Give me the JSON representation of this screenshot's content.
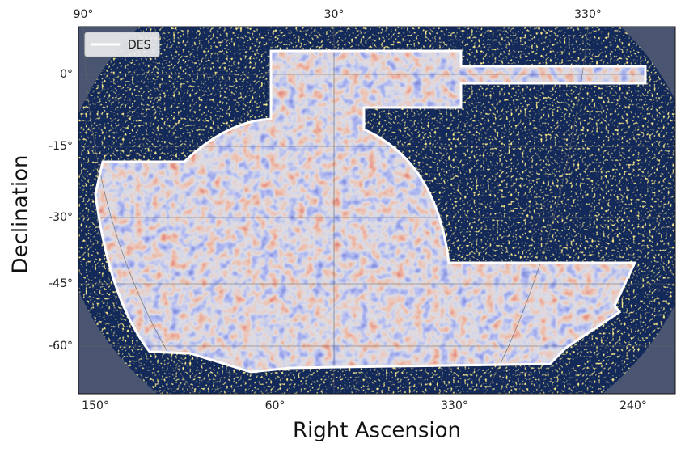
{
  "map": {
    "x_label": "Right Ascension",
    "y_label": "Declination",
    "legend": "DES",
    "top_ticks": [
      "90°",
      "30°",
      "330°"
    ],
    "bottom_ticks": [
      "150°",
      "60°",
      "330°",
      "240°"
    ],
    "left_ticks": [
      "0°",
      "-15°",
      "-30°",
      "-45°",
      "-60°"
    ]
  }
}
